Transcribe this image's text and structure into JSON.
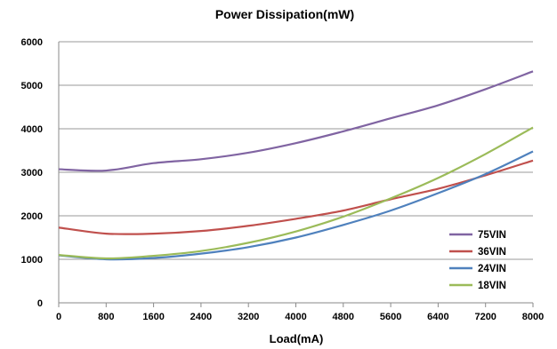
{
  "chart_data": {
    "type": "line",
    "title": "Power Dissipation(mW)",
    "xlabel": "Load(mA)",
    "ylabel": "",
    "x": [
      0,
      800,
      1600,
      2400,
      3200,
      4000,
      4800,
      5600,
      6400,
      7200,
      8000
    ],
    "x_ticks": [
      "0",
      "800",
      "1600",
      "2400",
      "3200",
      "4000",
      "4800",
      "5600",
      "6400",
      "7200",
      "8000"
    ],
    "y_ticks": [
      "0",
      "1000",
      "2000",
      "3000",
      "4000",
      "5000",
      "6000"
    ],
    "ylim": [
      0,
      6000
    ],
    "xlim": [
      0,
      8000
    ],
    "grid": "horizontal",
    "legend_position": "bottom-right",
    "series": [
      {
        "name": "75VIN",
        "color": "#8064A2",
        "values": [
          3070,
          3040,
          3210,
          3300,
          3450,
          3670,
          3940,
          4240,
          4540,
          4910,
          5320
        ]
      },
      {
        "name": "36VIN",
        "color": "#C0504D",
        "values": [
          1730,
          1590,
          1590,
          1650,
          1770,
          1930,
          2120,
          2380,
          2620,
          2930,
          3270
        ]
      },
      {
        "name": "24VIN",
        "color": "#4F81BD",
        "values": [
          1090,
          1000,
          1030,
          1130,
          1280,
          1500,
          1790,
          2120,
          2520,
          2960,
          3480
        ]
      },
      {
        "name": "18VIN",
        "color": "#9BBB59",
        "values": [
          1100,
          1020,
          1080,
          1190,
          1380,
          1640,
          1980,
          2400,
          2870,
          3420,
          4030
        ]
      }
    ]
  }
}
